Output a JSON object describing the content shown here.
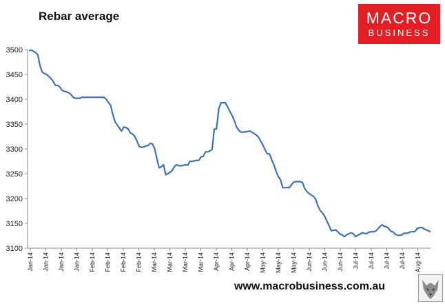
{
  "header": {
    "title": "Rebar average"
  },
  "logo": {
    "line1": "MACRO",
    "line2": "BUSINESS",
    "color": "#e31e24"
  },
  "footer": {
    "url": "www.macrobusiness.com.au"
  },
  "chart_data": {
    "type": "line",
    "title": "Rebar average",
    "xlabel": "",
    "ylabel": "",
    "ylim": [
      3100,
      3500
    ],
    "yticks": [
      3100,
      3150,
      3200,
      3250,
      3300,
      3350,
      3400,
      3450,
      3500
    ],
    "xtick_labels": [
      "Jan-14",
      "Jan-14",
      "Jan-14",
      "Jan-14",
      "Feb-14",
      "Feb-14",
      "Feb-14",
      "Feb-14",
      "Mar-14",
      "Mar-14",
      "Mar-14",
      "Mar-14",
      "Apr-14",
      "Apr-14",
      "Apr-14",
      "May-14",
      "May-14",
      "May-14",
      "Jun-14",
      "Jun-14",
      "Jun-14",
      "Jul-14",
      "Jul-14",
      "Jul-14",
      "Jul-14",
      "Aug-14"
    ],
    "grid": false,
    "line_color": "#3d71b8",
    "series": [
      {
        "values": [
          3498,
          3499,
          3497,
          3494,
          3490,
          3468,
          3455,
          3452,
          3450,
          3446,
          3442,
          3436,
          3428,
          3428,
          3425,
          3418,
          3416,
          3415,
          3413,
          3410,
          3404,
          3402,
          3402,
          3402,
          3404,
          3404,
          3404,
          3404,
          3404,
          3404,
          3404,
          3404,
          3404,
          3404,
          3404,
          3400,
          3394,
          3388,
          3370,
          3355,
          3348,
          3342,
          3336,
          3344,
          3343,
          3340,
          3332,
          3330,
          3325,
          3315,
          3305,
          3303,
          3304,
          3306,
          3307,
          3311,
          3310,
          3300,
          3280,
          3262,
          3264,
          3268,
          3248,
          3250,
          3253,
          3257,
          3265,
          3268,
          3266,
          3266,
          3267,
          3268,
          3267,
          3275,
          3275,
          3276,
          3277,
          3277,
          3284,
          3285,
          3294,
          3294,
          3296,
          3299,
          3340,
          3340,
          3380,
          3393,
          3393,
          3393,
          3385,
          3376,
          3368,
          3358,
          3345,
          3338,
          3334,
          3334,
          3334,
          3335,
          3336,
          3334,
          3331,
          3328,
          3324,
          3316,
          3308,
          3298,
          3290,
          3290,
          3278,
          3268,
          3255,
          3244,
          3238,
          3222,
          3222,
          3222,
          3222,
          3228,
          3233,
          3234,
          3234,
          3234,
          3232,
          3220,
          3214,
          3210,
          3207,
          3204,
          3198,
          3185,
          3176,
          3171,
          3165,
          3155,
          3146,
          3135,
          3136,
          3137,
          3133,
          3128,
          3127,
          3123,
          3127,
          3129,
          3131,
          3129,
          3123,
          3126,
          3128,
          3131,
          3130,
          3129,
          3132,
          3133,
          3133,
          3134,
          3138,
          3143,
          3147,
          3144,
          3143,
          3140,
          3134,
          3133,
          3128,
          3126,
          3126,
          3127,
          3130,
          3130,
          3131,
          3133,
          3133,
          3134,
          3140,
          3141,
          3142,
          3139,
          3137,
          3135,
          3133
        ]
      }
    ]
  }
}
